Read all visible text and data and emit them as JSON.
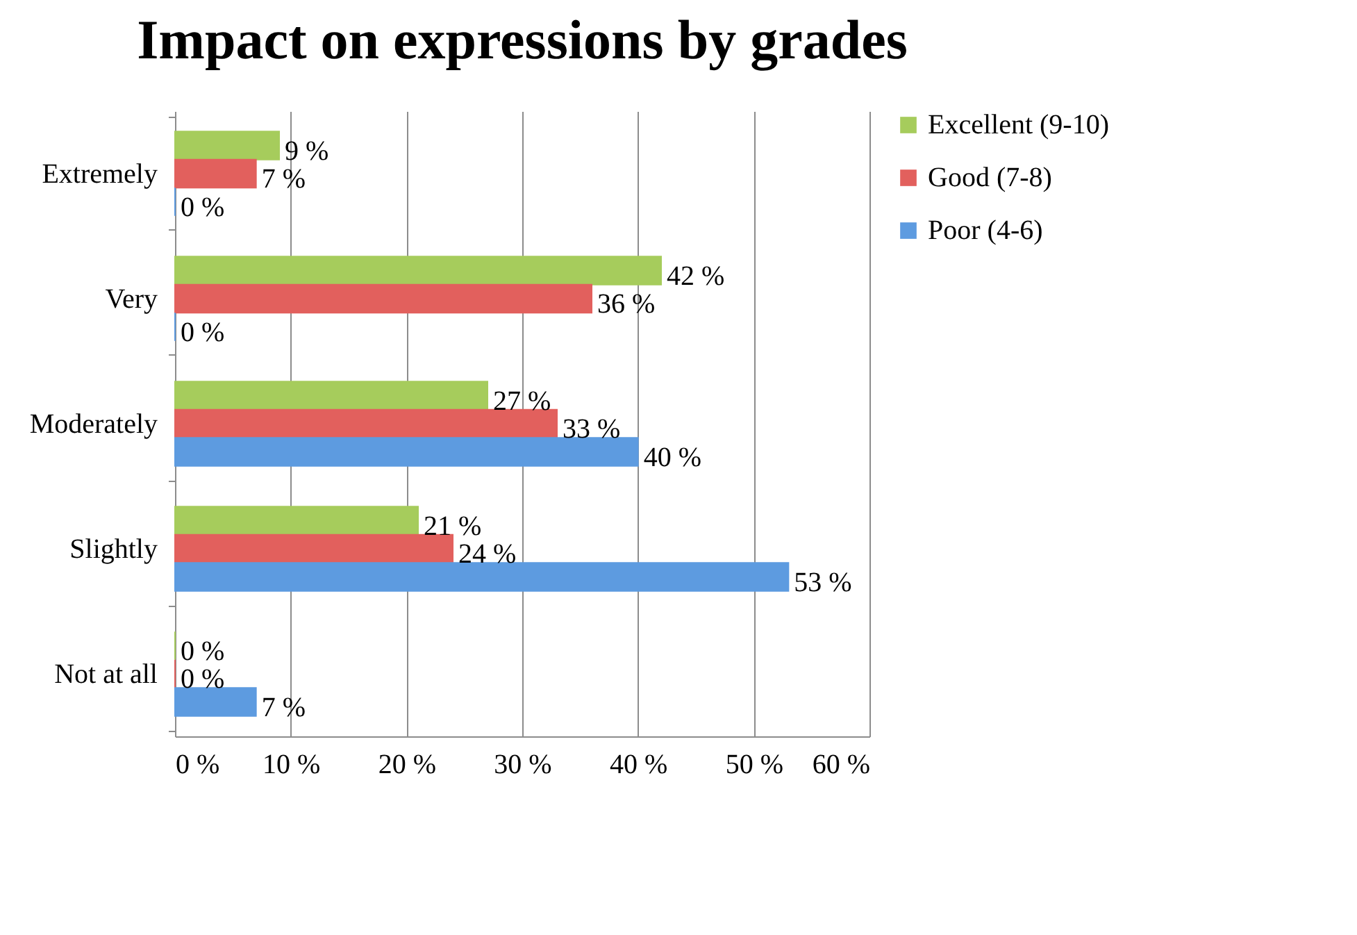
{
  "chart_data": {
    "type": "bar",
    "title": "Impact on expressions by grades",
    "orientation": "horizontal",
    "categories": [
      "Extremely",
      "Very",
      "Moderately",
      "Slightly",
      "Not at all"
    ],
    "series": [
      {
        "name": "Excellent (9-10)",
        "color": "#a6cc5c",
        "values": [
          9,
          42,
          27,
          21,
          0
        ],
        "value_labels": [
          "9 %",
          "42 %",
          "27 %",
          "21 %",
          "0 %"
        ]
      },
      {
        "name": "Good (7-8)",
        "color": "#e2605d",
        "values": [
          7,
          36,
          33,
          24,
          0
        ],
        "value_labels": [
          "7 %",
          "36 %",
          "33 %",
          "24 %",
          "0 %"
        ]
      },
      {
        "name": "Poor (4-6)",
        "color": "#5d9be0",
        "values": [
          0,
          0,
          40,
          53,
          7
        ],
        "value_labels": [
          "0 %",
          "0 %",
          "40 %",
          "53 %",
          "7 %"
        ]
      }
    ],
    "xlim": [
      0,
      60
    ],
    "xticks": [
      {
        "value": 0,
        "label": "0 %"
      },
      {
        "value": 10,
        "label": "10 %"
      },
      {
        "value": 20,
        "label": "20 %"
      },
      {
        "value": 30,
        "label": "30 %"
      },
      {
        "value": 40,
        "label": "40 %"
      },
      {
        "value": 50,
        "label": "50 %"
      },
      {
        "value": 60,
        "label": "60 %"
      }
    ],
    "grid": "x",
    "legend": "right"
  }
}
